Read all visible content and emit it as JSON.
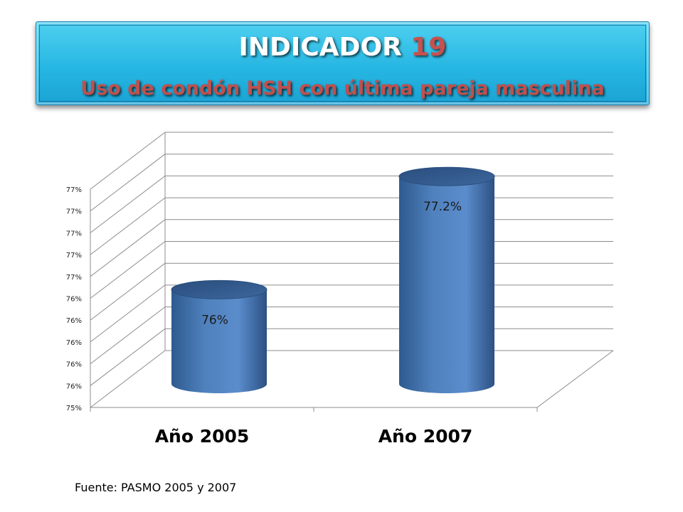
{
  "header": {
    "title_word": "INDICADOR",
    "title_number": "19",
    "subtitle": "Uso de condón HSH con última pareja masculina"
  },
  "chart_data": {
    "type": "bar",
    "style": "3d-cylinder",
    "categories": [
      "Año 2005",
      "Año 2007"
    ],
    "values": [
      76,
      77.2
    ],
    "data_labels": [
      "76%",
      "77.2%"
    ],
    "y_tick_labels": [
      "75%",
      "76%",
      "76%",
      "76%",
      "76%",
      "76%",
      "77%",
      "77%",
      "77%",
      "77%",
      "77%"
    ],
    "ylim": [
      75,
      77.5
    ],
    "grid": true,
    "bar_color": "#4f81bd"
  },
  "footer": {
    "source": "Fuente: PASMO 2005 y 2007"
  }
}
